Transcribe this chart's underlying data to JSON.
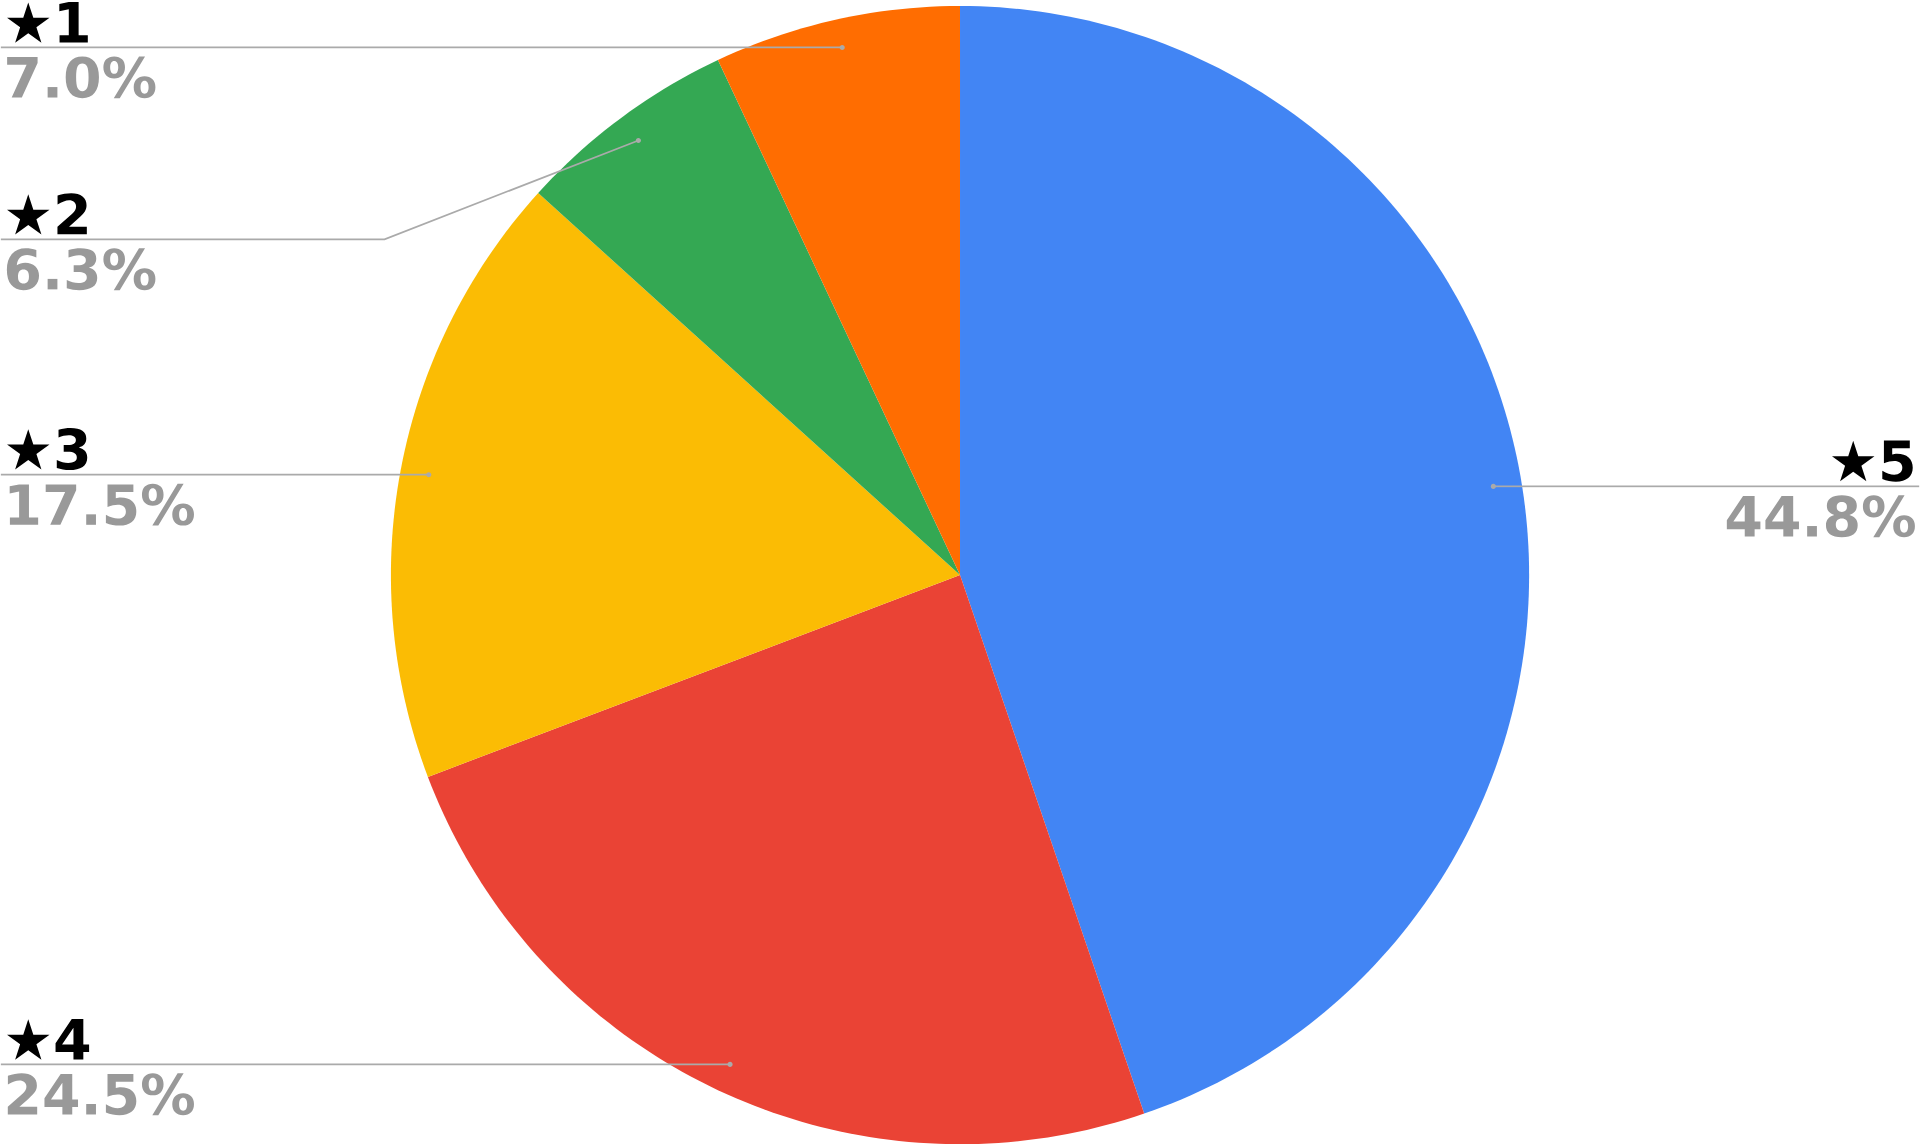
{
  "chart_data": {
    "type": "pie",
    "categories": [
      "★5",
      "★4",
      "★3",
      "★2",
      "★1"
    ],
    "values": [
      44.8,
      24.5,
      17.5,
      6.3,
      7.0
    ],
    "value_labels": [
      "44.8%",
      "24.5%",
      "17.5%",
      "6.3%",
      "7.0%"
    ],
    "colors": [
      "#4285f4",
      "#ea4335",
      "#fbbc04",
      "#34a853",
      "#ff6d01"
    ]
  }
}
